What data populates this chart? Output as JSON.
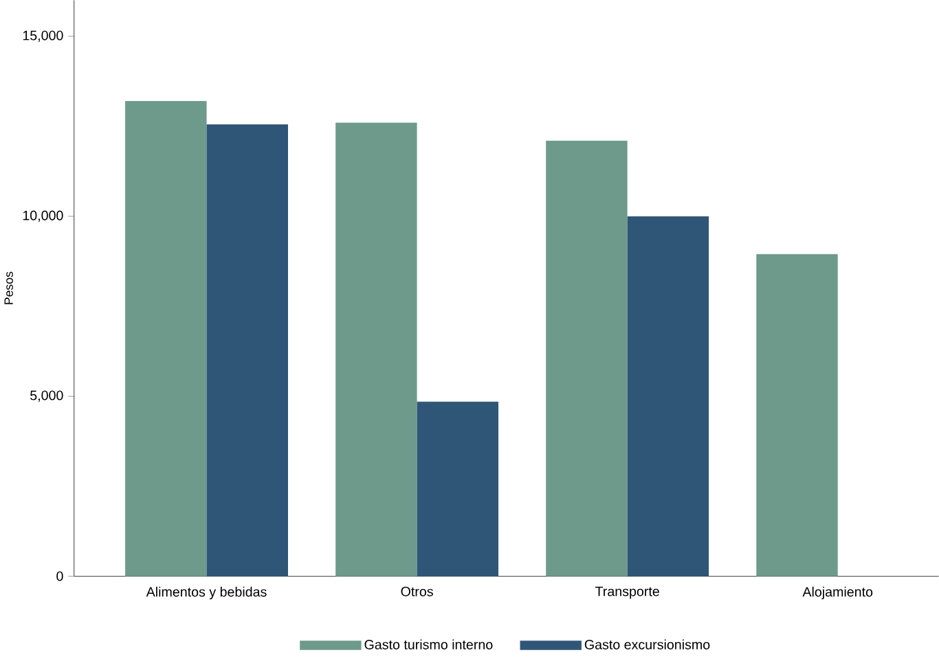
{
  "chart_data": {
    "type": "bar",
    "ylabel": "Pesos",
    "categories": [
      "Alimentos y bebidas",
      "Otros",
      "Transporte",
      "Alojamiento"
    ],
    "series": [
      {
        "name": "Gasto turismo interno",
        "color": "#6e9a8b",
        "values": [
          13200,
          12600,
          12100,
          8950
        ]
      },
      {
        "name": "Gasto excursionismo",
        "color": "#2f5677",
        "values": [
          12550,
          4850,
          10000,
          null
        ]
      }
    ],
    "ylim": [
      0,
      16000
    ],
    "yticks": [
      0,
      {
        "value": 5000,
        "label": "5,000"
      },
      {
        "value": 10000,
        "label": "10,000"
      },
      {
        "value": 15000,
        "label": "15,000"
      }
    ],
    "grid": false,
    "legend": "bottom"
  }
}
